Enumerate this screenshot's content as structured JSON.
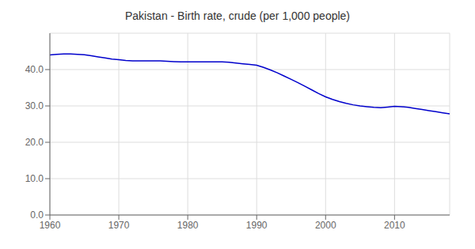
{
  "chart_data": {
    "type": "line",
    "title": "Pakistan - Birth rate, crude (per 1,000 people)",
    "x": [
      1960,
      1961,
      1962,
      1963,
      1964,
      1965,
      1966,
      1967,
      1968,
      1969,
      1970,
      1971,
      1972,
      1973,
      1974,
      1975,
      1976,
      1977,
      1978,
      1979,
      1980,
      1981,
      1982,
      1983,
      1984,
      1985,
      1986,
      1987,
      1988,
      1989,
      1990,
      1991,
      1992,
      1993,
      1994,
      1995,
      1996,
      1997,
      1998,
      1999,
      2000,
      2001,
      2002,
      2003,
      2004,
      2005,
      2006,
      2007,
      2008,
      2009,
      2010,
      2011,
      2012,
      2013,
      2014,
      2015,
      2016,
      2017,
      2018
    ],
    "values": [
      44.0,
      44.2,
      44.3,
      44.3,
      44.2,
      44.1,
      43.8,
      43.5,
      43.2,
      42.9,
      42.7,
      42.5,
      42.4,
      42.4,
      42.4,
      42.4,
      42.4,
      42.3,
      42.2,
      42.1,
      42.1,
      42.1,
      42.1,
      42.1,
      42.1,
      42.1,
      42.0,
      41.8,
      41.6,
      41.4,
      41.2,
      40.6,
      39.9,
      39.1,
      38.2,
      37.3,
      36.4,
      35.4,
      34.4,
      33.4,
      32.5,
      31.8,
      31.2,
      30.7,
      30.3,
      30.0,
      29.8,
      29.6,
      29.5,
      29.7,
      29.9,
      29.8,
      29.6,
      29.3,
      29.0,
      28.7,
      28.4,
      28.1,
      27.8
    ],
    "color": "#0000CC",
    "xlim": [
      1960,
      2018
    ],
    "ylim": [
      0,
      50
    ],
    "xticks": [
      1960,
      1970,
      1980,
      1990,
      2000,
      2010
    ],
    "yticks": [
      {
        "value": 0,
        "label": "0.0"
      },
      {
        "value": 10,
        "label": "10.0"
      },
      {
        "value": 20,
        "label": "20.0"
      },
      {
        "value": 30,
        "label": "30.0"
      },
      {
        "value": 40,
        "label": "40.0"
      }
    ],
    "grid": true
  }
}
